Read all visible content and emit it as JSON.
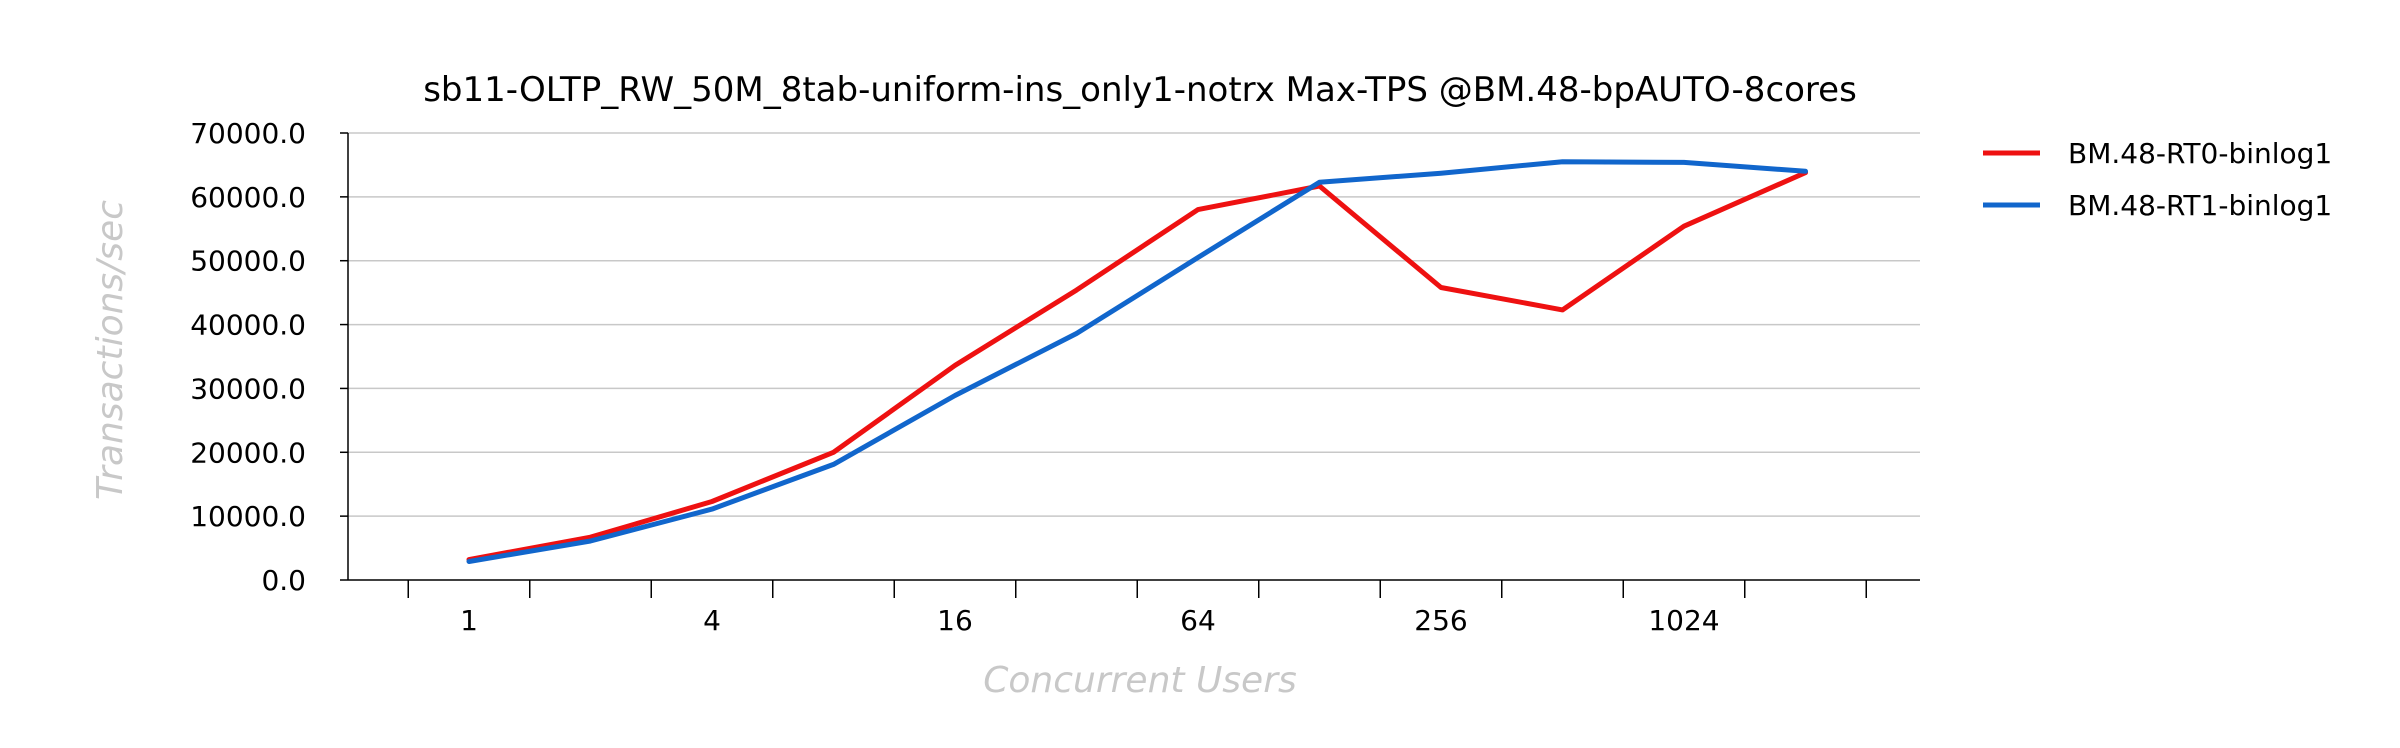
{
  "chart_data": {
    "type": "line",
    "title": "sb11-OLTP_RW_50M_8tab-uniform-ins_only1-notrx Max-TPS @BM.48-bpAUTO-8cores",
    "xlabel": "Concurrent Users",
    "ylabel": "Transactions/sec",
    "x": [
      1,
      2,
      4,
      8,
      16,
      32,
      64,
      128,
      256,
      512,
      1024,
      2048
    ],
    "x_scale": "log2",
    "x_tick_labels": [
      "1",
      "4",
      "16",
      "64",
      "256",
      "1024"
    ],
    "y_tick_labels": [
      "0.0",
      "10000.0",
      "20000.0",
      "30000.0",
      "40000.0",
      "50000.0",
      "60000.0",
      "70000.0"
    ],
    "ylim": [
      0,
      70000
    ],
    "grid": "horizontal",
    "legend_position": "right",
    "series": [
      {
        "name": "BM.48-RT0-binlog1",
        "color": "#ee1111",
        "values": [
          3200,
          6700,
          12300,
          20000,
          33600,
          45400,
          58000,
          61700,
          45800,
          42300,
          55400,
          63800
        ]
      },
      {
        "name": "BM.48-RT1-binlog1",
        "color": "#1166cc",
        "values": [
          2900,
          6100,
          11100,
          18100,
          28900,
          38600,
          50500,
          62300,
          63700,
          65500,
          65400,
          64000
        ]
      }
    ]
  }
}
